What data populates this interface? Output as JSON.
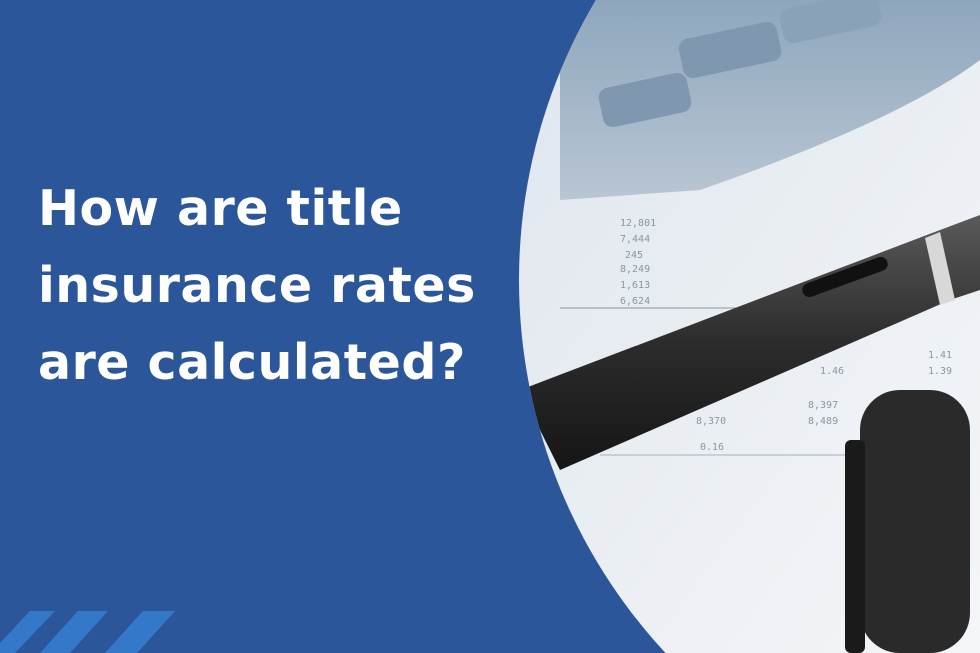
{
  "headline": {
    "lines": [
      "How are title",
      "insurance rates",
      "are calculated?"
    ]
  },
  "colors": {
    "background": "#2b579a",
    "stripe": "#3479c9",
    "text": "#ffffff"
  },
  "photo": {
    "subject": "pen-on-financial-report-with-calculator",
    "table_values": [
      "12,801",
      "7,444",
      "245",
      "8,249",
      "1,613",
      "6,624",
      "1.41",
      "1.46",
      "1.39",
      "8,397",
      "8,370",
      "8,489",
      "0.16"
    ]
  }
}
